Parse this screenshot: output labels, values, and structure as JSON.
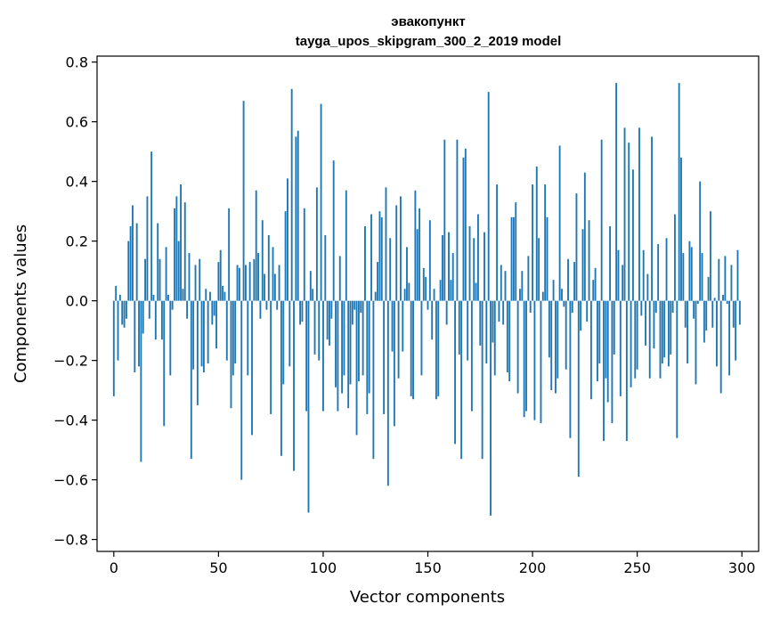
{
  "chart_data": {
    "type": "bar",
    "title": "эвакопункт",
    "subtitle": "tayga_upos_skipgram_300_2_2019 model",
    "xlabel": "Vector components",
    "ylabel": "Components values",
    "xlim": [
      -8,
      308
    ],
    "ylim": [
      -0.84,
      0.82
    ],
    "x_ticks": [
      0,
      50,
      100,
      150,
      200,
      250,
      300
    ],
    "x_tick_labels": [
      "0",
      "50",
      "100",
      "150",
      "200",
      "250",
      "300"
    ],
    "y_ticks": [
      -0.8,
      -0.6,
      -0.4,
      -0.2,
      0.0,
      0.2,
      0.4,
      0.6,
      0.8
    ],
    "y_tick_labels": [
      "−0.8",
      "−0.6",
      "−0.4",
      "−0.2",
      "0.0",
      "0.2",
      "0.4",
      "0.6",
      "0.8"
    ],
    "bar_color": "#1f77b4",
    "grid": false,
    "values": [
      -0.32,
      0.05,
      -0.2,
      0.02,
      -0.08,
      -0.09,
      -0.06,
      0.2,
      0.25,
      0.32,
      -0.24,
      0.26,
      -0.22,
      -0.54,
      -0.11,
      0.14,
      0.35,
      -0.06,
      0.5,
      0.02,
      -0.13,
      0.26,
      0.14,
      -0.13,
      -0.42,
      0.18,
      0.02,
      -0.25,
      -0.03,
      0.31,
      0.35,
      0.2,
      0.39,
      0.04,
      0.33,
      -0.06,
      0.16,
      -0.53,
      -0.23,
      0.12,
      -0.35,
      0.14,
      -0.22,
      -0.24,
      0.04,
      -0.21,
      0.03,
      -0.08,
      -0.05,
      -0.16,
      0.13,
      0.17,
      0.05,
      0.03,
      -0.2,
      0.31,
      -0.36,
      -0.25,
      -0.21,
      0.12,
      0.11,
      -0.6,
      0.67,
      0.12,
      -0.25,
      0.13,
      -0.45,
      0.14,
      0.37,
      0.16,
      -0.06,
      0.27,
      0.09,
      -0.03,
      0.22,
      -0.38,
      0.18,
      0.09,
      -0.03,
      0.12,
      -0.52,
      -0.28,
      0.3,
      0.41,
      -0.22,
      0.71,
      -0.57,
      0.55,
      0.57,
      -0.08,
      -0.07,
      0.31,
      -0.37,
      -0.71,
      0.1,
      0.04,
      -0.18,
      0.38,
      -0.2,
      0.66,
      -0.37,
      0.22,
      -0.13,
      -0.15,
      -0.06,
      0.47,
      -0.29,
      -0.37,
      0.15,
      -0.31,
      -0.25,
      0.37,
      -0.36,
      -0.28,
      -0.08,
      -0.03,
      -0.45,
      -0.27,
      -0.04,
      -0.25,
      0.25,
      -0.38,
      -0.31,
      0.29,
      -0.53,
      0.03,
      0.13,
      0.3,
      0.28,
      -0.38,
      0.38,
      -0.62,
      0.21,
      -0.17,
      -0.42,
      0.32,
      -0.26,
      0.35,
      -0.17,
      0.04,
      0.18,
      0.06,
      -0.32,
      -0.33,
      0.37,
      0.24,
      0.31,
      -0.25,
      0.11,
      0.08,
      -0.03,
      0.27,
      -0.13,
      0.04,
      -0.33,
      -0.32,
      0.07,
      0.22,
      0.54,
      -0.08,
      0.23,
      0.07,
      0.16,
      -0.48,
      0.54,
      -0.18,
      -0.53,
      0.48,
      0.51,
      -0.2,
      0.25,
      -0.37,
      0.21,
      0.06,
      0.29,
      -0.15,
      -0.53,
      0.23,
      -0.21,
      0.7,
      -0.72,
      -0.14,
      -0.25,
      0.39,
      -0.07,
      0.12,
      -0.08,
      0.1,
      -0.24,
      -0.27,
      0.28,
      0.28,
      0.33,
      -0.31,
      0.04,
      0.1,
      -0.39,
      -0.37,
      0.15,
      -0.04,
      0.39,
      -0.4,
      0.45,
      0.21,
      -0.41,
      0.03,
      0.39,
      0.28,
      -0.19,
      -0.3,
      0.07,
      -0.31,
      -0.26,
      0.52,
      0.04,
      -0.02,
      -0.23,
      0.14,
      -0.46,
      -0.04,
      0.13,
      0.36,
      -0.59,
      -0.1,
      0.24,
      0.43,
      -0.07,
      0.27,
      -0.33,
      0.07,
      0.11,
      -0.27,
      -0.21,
      0.54,
      -0.47,
      -0.26,
      -0.34,
      0.25,
      -0.41,
      -0.18,
      0.73,
      0.17,
      -0.32,
      0.12,
      0.58,
      -0.47,
      0.53,
      -0.29,
      0.44,
      -0.26,
      -0.23,
      0.58,
      -0.05,
      0.17,
      -0.15,
      0.09,
      -0.26,
      0.55,
      -0.16,
      -0.04,
      0.19,
      -0.26,
      -0.21,
      -0.19,
      0.21,
      -0.22,
      -0.18,
      -0.04,
      0.29,
      -0.46,
      0.73,
      0.48,
      0.16,
      -0.09,
      -0.21,
      0.2,
      0.18,
      -0.06,
      -0.28,
      -0.01,
      0.4,
      0.16,
      -0.14,
      -0.1,
      0.08,
      0.3,
      -0.09,
      0.01,
      -0.22,
      0.14,
      -0.31,
      0.02,
      0.15,
      -0.01,
      -0.25,
      0.12,
      -0.09,
      -0.2,
      0.17,
      -0.08
    ]
  }
}
